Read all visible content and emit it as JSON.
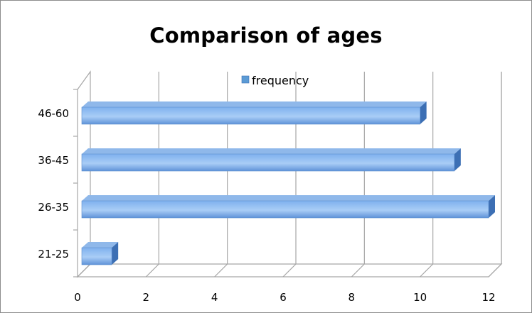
{
  "chart_data": {
    "type": "bar",
    "orientation": "horizontal",
    "title": "Comparison of ages",
    "categories": [
      "21-25",
      "26-35",
      "36-45",
      "46-60"
    ],
    "series": [
      {
        "name": "frequency",
        "values": [
          1,
          12,
          11,
          10
        ],
        "color": "#5b9bd5"
      }
    ],
    "xlim": [
      0,
      12
    ],
    "xticks": [
      0,
      2,
      4,
      6,
      8,
      10,
      12
    ],
    "grid": true,
    "legend_position": "top-center",
    "style": "3d-bar"
  }
}
